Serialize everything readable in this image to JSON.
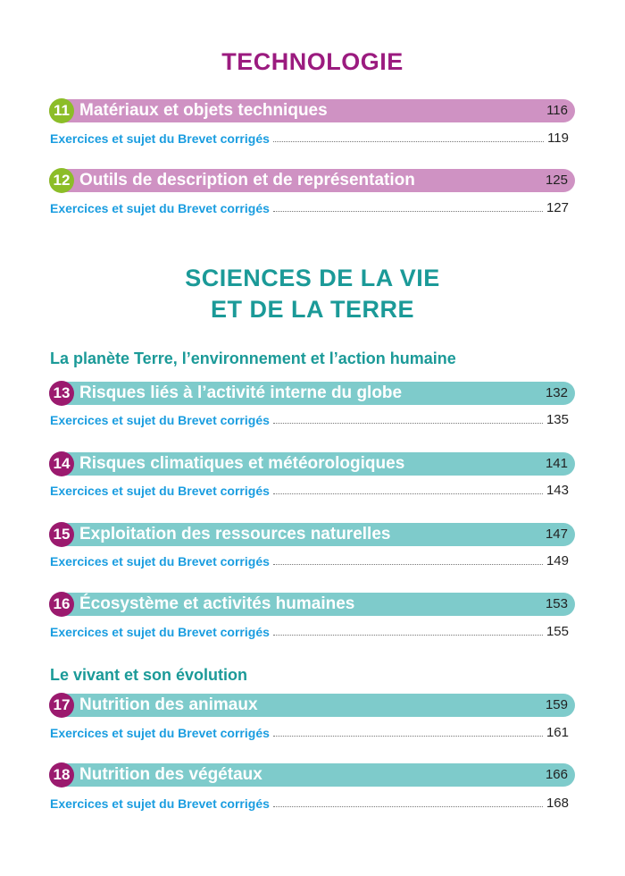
{
  "colors": {
    "tech_title": "#9b1b7f",
    "tech_bar": "#cf92c3",
    "tech_num": "#8cbd28",
    "svt_title": "#1b9a98",
    "svt_bar": "#7ecbcb",
    "svt_num": "#9b1a6e",
    "link": "#1a9de0"
  },
  "technologie": {
    "title": "TECHNOLOGIE"
  },
  "svt": {
    "title_line1": "SCIENCES DE LA VIE",
    "title_line2": "ET DE LA TERRE",
    "subsection1": "La planète Terre, l’environnement et l’action humaine",
    "subsection2": "Le vivant et son évolution"
  },
  "chapters": [
    {
      "num": "11",
      "title": "Matériaux et objets techniques",
      "page": "116",
      "sub": "Exercices et sujet du Brevet corrigés",
      "sub_page": "119"
    },
    {
      "num": "12",
      "title": "Outils de description et de représentation",
      "page": "125",
      "sub": "Exercices et sujet du Brevet corrigés",
      "sub_page": "127"
    },
    {
      "num": "13",
      "title": "Risques liés à l’activité interne du globe",
      "page": "132",
      "sub": "Exercices et sujet du Brevet corrigés",
      "sub_page": "135"
    },
    {
      "num": "14",
      "title": "Risques climatiques et météorologiques",
      "page": "141",
      "sub": "Exercices et sujet du Brevet corrigés",
      "sub_page": "143"
    },
    {
      "num": "15",
      "title": "Exploitation des ressources naturelles",
      "page": "147",
      "sub": "Exercices et sujet du Brevet corrigés",
      "sub_page": "149"
    },
    {
      "num": "16",
      "title": "Écosystème et activités humaines",
      "page": "153",
      "sub": "Exercices et sujet du Brevet corrigés",
      "sub_page": "155"
    },
    {
      "num": "17",
      "title": "Nutrition des animaux",
      "page": "159",
      "sub": "Exercices et sujet du Brevet corrigés",
      "sub_page": "161"
    },
    {
      "num": "18",
      "title": "Nutrition des végétaux",
      "page": "166",
      "sub": "Exercices et sujet du Brevet corrigés",
      "sub_page": "168"
    }
  ]
}
